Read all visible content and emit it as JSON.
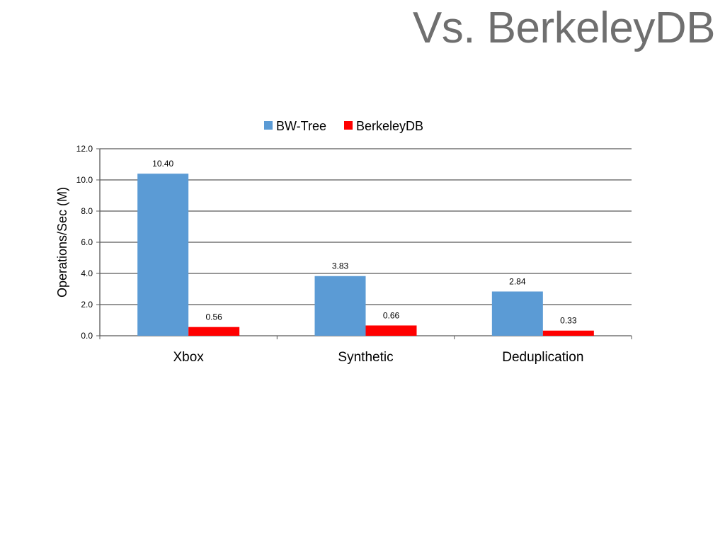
{
  "slide": {
    "title": "Vs. BerkeleyDB"
  },
  "chart_data": {
    "type": "bar",
    "title": "",
    "xlabel": "",
    "ylabel": "Operations/Sec (M)",
    "categories": [
      "Xbox",
      "Synthetic",
      "Deduplication"
    ],
    "series": [
      {
        "name": "BW-Tree",
        "color": "#5b9bd5",
        "values": [
          10.4,
          3.83,
          2.84
        ],
        "labels": [
          "10.40",
          "3.83",
          "2.84"
        ]
      },
      {
        "name": "BerkeleyDB",
        "color": "#ff0000",
        "values": [
          0.56,
          0.66,
          0.33
        ],
        "labels": [
          "0.56",
          "0.66",
          "0.33"
        ]
      }
    ],
    "ylim": [
      0,
      12
    ],
    "yticks": [
      "0.0",
      "2.0",
      "4.0",
      "6.0",
      "8.0",
      "10.0",
      "12.0"
    ],
    "grid": true,
    "legend_position": "top-center"
  }
}
